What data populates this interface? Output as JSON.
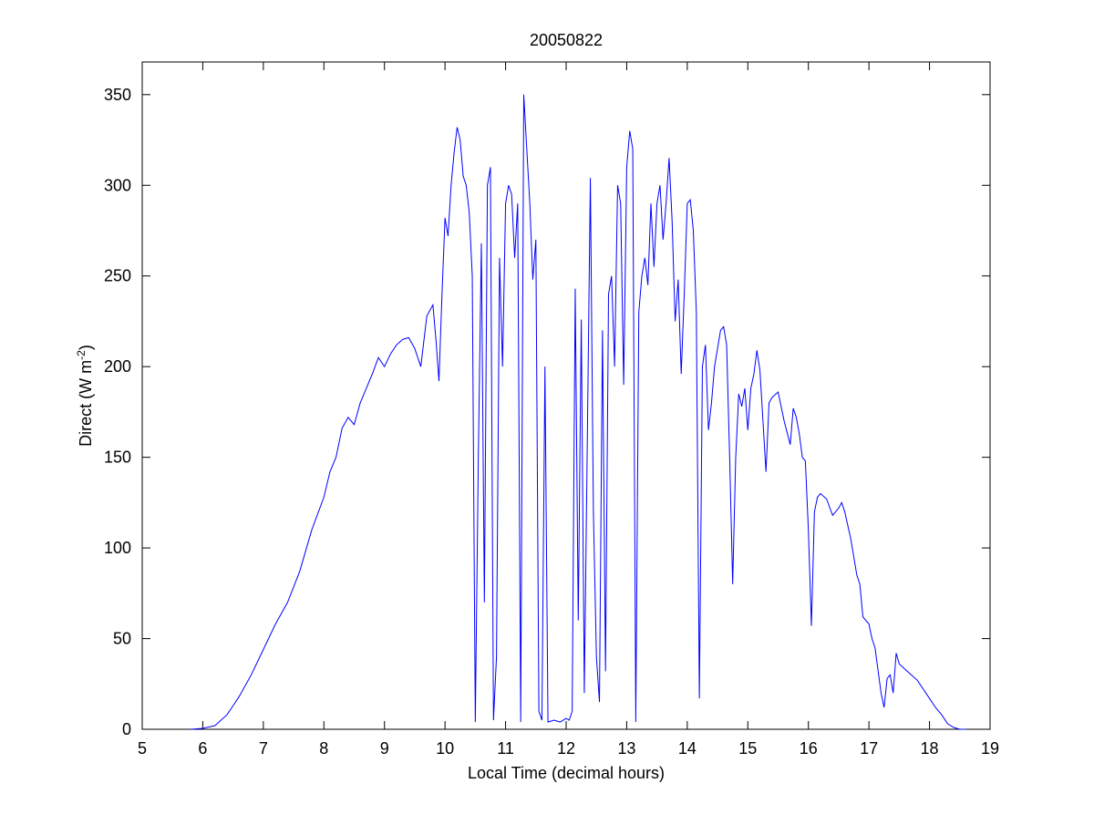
{
  "chart_data": {
    "type": "line",
    "title": "20050822",
    "xlabel": "Local Time (decimal hours)",
    "ylabel": {
      "text": "Direct (W m",
      "superscript": "-2",
      "suffix": ")"
    },
    "xlim": [
      5,
      19
    ],
    "xticks": [
      5,
      6,
      7,
      8,
      9,
      10,
      11,
      12,
      13,
      14,
      15,
      16,
      17,
      18,
      19
    ],
    "ylim": [
      0,
      368
    ],
    "yticks": [
      0,
      50,
      100,
      150,
      200,
      250,
      300,
      350
    ],
    "series": [
      {
        "color": "#0000ff",
        "x": [
          5.8,
          6.0,
          6.2,
          6.4,
          6.6,
          6.8,
          7.0,
          7.2,
          7.4,
          7.6,
          7.8,
          8.0,
          8.1,
          8.2,
          8.3,
          8.4,
          8.5,
          8.6,
          8.7,
          8.8,
          8.9,
          9.0,
          9.1,
          9.2,
          9.3,
          9.4,
          9.5,
          9.6,
          9.7,
          9.8,
          9.85,
          9.9,
          9.95,
          10.0,
          10.05,
          10.1,
          10.15,
          10.2,
          10.25,
          10.3,
          10.35,
          10.4,
          10.45,
          10.5,
          10.55,
          10.6,
          10.65,
          10.7,
          10.75,
          10.8,
          10.85,
          10.9,
          10.95,
          11.0,
          11.05,
          11.1,
          11.15,
          11.2,
          11.25,
          11.3,
          11.35,
          11.4,
          11.45,
          11.5,
          11.55,
          11.6,
          11.65,
          11.7,
          11.8,
          11.9,
          12.0,
          12.05,
          12.1,
          12.15,
          12.2,
          12.25,
          12.3,
          12.35,
          12.4,
          12.45,
          12.5,
          12.55,
          12.6,
          12.65,
          12.7,
          12.75,
          12.8,
          12.85,
          12.9,
          12.95,
          13.0,
          13.05,
          13.1,
          13.15,
          13.2,
          13.25,
          13.3,
          13.35,
          13.4,
          13.45,
          13.5,
          13.55,
          13.6,
          13.65,
          13.7,
          13.75,
          13.8,
          13.85,
          13.9,
          13.95,
          14.0,
          14.05,
          14.1,
          14.15,
          14.2,
          14.25,
          14.3,
          14.35,
          14.4,
          14.45,
          14.5,
          14.55,
          14.6,
          14.65,
          14.7,
          14.75,
          14.8,
          14.85,
          14.9,
          14.95,
          15.0,
          15.05,
          15.1,
          15.15,
          15.2,
          15.3,
          15.35,
          15.4,
          15.5,
          15.6,
          15.7,
          15.75,
          15.8,
          15.85,
          15.9,
          15.95,
          16.0,
          16.05,
          16.1,
          16.15,
          16.2,
          16.3,
          16.4,
          16.5,
          16.55,
          16.6,
          16.7,
          16.8,
          16.85,
          16.9,
          17.0,
          17.05,
          17.1,
          17.2,
          17.25,
          17.3,
          17.35,
          17.4,
          17.45,
          17.5,
          17.6,
          17.7,
          17.8,
          17.9,
          18.0,
          18.1,
          18.2,
          18.3,
          18.4,
          18.5,
          18.6
        ],
        "values": [
          0,
          0.5,
          2,
          8,
          18,
          30,
          44,
          58,
          70,
          87,
          110,
          128,
          142,
          150,
          166,
          172,
          168,
          180,
          188,
          196,
          205,
          200,
          207,
          212,
          215,
          216,
          210,
          200,
          228,
          234,
          215,
          192,
          240,
          282,
          272,
          300,
          318,
          332,
          325,
          305,
          300,
          285,
          250,
          4,
          150,
          268,
          70,
          300,
          310,
          5,
          40,
          260,
          200,
          290,
          300,
          295,
          260,
          290,
          4,
          350,
          320,
          290,
          248,
          270,
          10,
          5,
          200,
          4,
          5,
          4,
          6,
          5,
          10,
          243,
          60,
          226,
          20,
          160,
          304,
          120,
          40,
          15,
          220,
          32,
          240,
          250,
          200,
          300,
          290,
          190,
          310,
          330,
          320,
          4,
          230,
          250,
          260,
          245,
          290,
          255,
          290,
          300,
          270,
          290,
          315,
          280,
          225,
          248,
          196,
          240,
          290,
          292,
          275,
          230,
          17,
          200,
          212,
          165,
          180,
          200,
          210,
          220,
          222,
          212,
          150,
          80,
          150,
          185,
          178,
          188,
          165,
          188,
          196,
          209,
          198,
          142,
          180,
          183,
          186,
          170,
          157,
          177,
          172,
          163,
          150,
          148,
          110,
          57,
          120,
          128,
          130,
          127,
          118,
          122,
          125,
          120,
          105,
          85,
          80,
          62,
          58,
          50,
          45,
          20,
          12,
          28,
          30,
          20,
          42,
          36,
          33,
          30,
          27,
          22,
          17,
          12,
          8,
          3,
          1,
          0,
          0
        ]
      }
    ]
  }
}
